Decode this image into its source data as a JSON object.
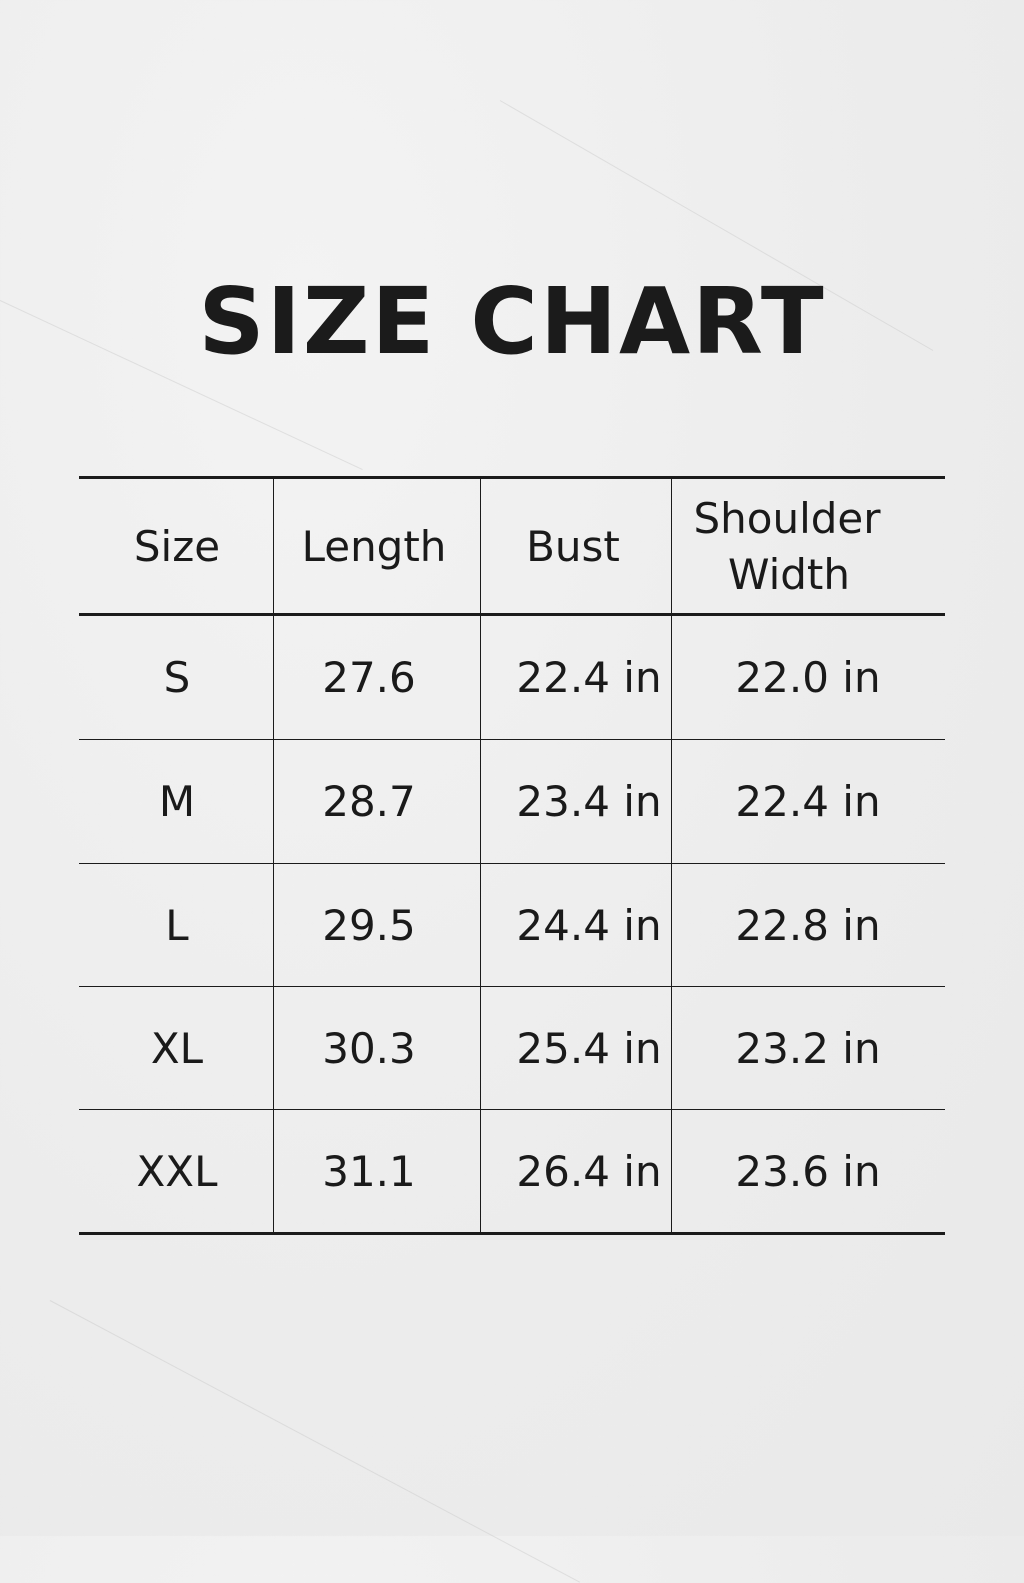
{
  "title": "SIZE CHART",
  "table": {
    "headers": [
      "Size",
      "Length",
      "Bust",
      "Shoulder Width"
    ],
    "header_lines": {
      "shoulder_1": "Shoulder",
      "shoulder_2": "Width"
    },
    "rows": [
      [
        "S",
        "27.6",
        "22.4 in",
        "22.0 in"
      ],
      [
        "M",
        "28.7",
        "23.4 in",
        "22.4 in"
      ],
      [
        "L",
        "29.5",
        "24.4 in",
        "22.8 in"
      ],
      [
        "XL",
        "30.3",
        "25.4 in",
        "23.2 in"
      ],
      [
        "XXL",
        "31.1",
        "26.4 in",
        "23.6 in"
      ]
    ]
  }
}
